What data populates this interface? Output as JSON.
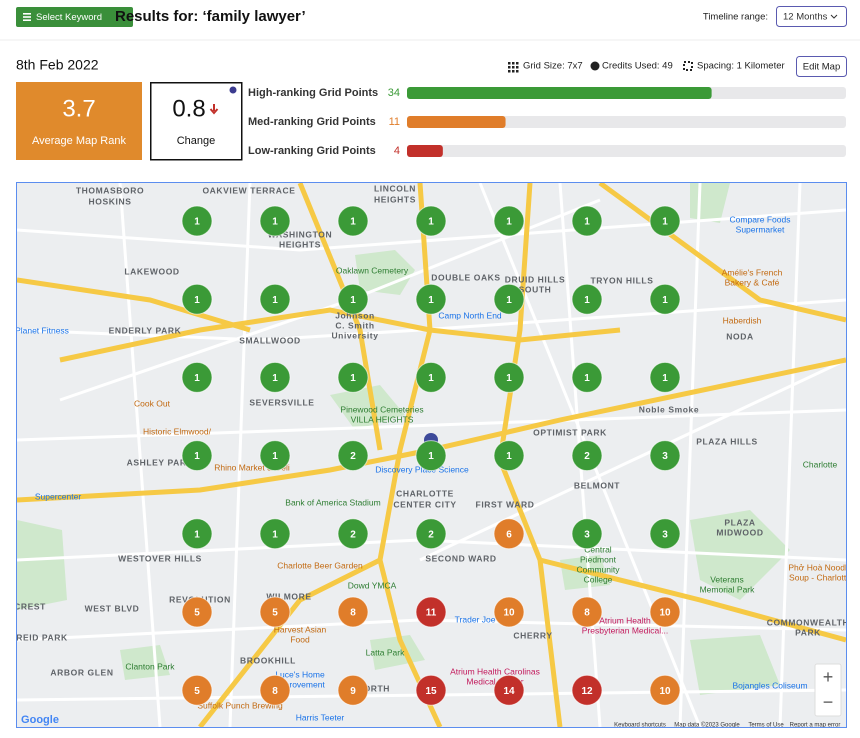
{
  "header": {
    "button": "Select Keyword",
    "title": "Results for: ‘family lawyer’",
    "timeline_label": "Timeline range:",
    "timeline_value": "12 Months"
  },
  "summary": {
    "date": "8th Feb 2022",
    "grid_size": "Grid Size: 7x7",
    "credits": "Credits Used: 49",
    "spacing": "Spacing: 1 Kilometer",
    "edit_button": "Edit Map",
    "average_rank": 3.7,
    "average_label": "Average Map Rank",
    "change": 0.8,
    "change_label": "Change"
  },
  "ranking": {
    "levels": [
      {
        "label": "High-ranking Grid Points",
        "count": 34,
        "color": "#3b9a37"
      },
      {
        "label": "Med-ranking Grid Points",
        "count": 11,
        "color": "#e07d2a"
      },
      {
        "label": "Low-ranking Grid Points",
        "count": 4,
        "color": "#c2302a"
      }
    ]
  },
  "map": {
    "grid": [
      [
        1,
        1,
        1,
        1,
        1,
        1,
        1
      ],
      [
        1,
        1,
        1,
        1,
        1,
        1,
        1
      ],
      [
        1,
        1,
        1,
        1,
        1,
        1,
        1
      ],
      [
        1,
        1,
        2,
        1,
        1,
        2,
        3
      ],
      [
        1,
        1,
        2,
        2,
        6,
        3,
        3
      ],
      [
        5,
        5,
        8,
        11,
        10,
        8,
        10
      ],
      [
        5,
        8,
        9,
        15,
        14,
        12,
        10
      ]
    ],
    "labels": [
      "THOMASBORO",
      "HOSKINS",
      "OAKVIEW TERRACE",
      "LINCOLN",
      "HEIGHTS",
      "WASHINGTON",
      "HEIGHTS",
      "LAKEWOOD",
      "Oaklawn Cemetery",
      "DOUBLE OAKS",
      "DRUID HILLS",
      "SOUTH",
      "TRYON HILLS",
      "Compare Foods",
      "Supermarket",
      "Amélie's French",
      "Bakery & Café",
      "Planet Fitness",
      "ENDERLY PARK",
      "Johnson",
      "C. Smith",
      "University",
      "SMALLWOOD",
      "Camp North End",
      "Haberdish",
      "NODA",
      "Cook Out",
      "SEVERSVILLE",
      "Historic Elmwood/",
      "Pinewood Cemeteries",
      "VILLA HEIGHTS",
      "Noble Smoke",
      "OPTIMIST PARK",
      "PLAZA HILLS",
      "ASHLEY PARK",
      "Rhino Market & Deli",
      "Discovery Place Science",
      "Charlotte",
      "Bank of America Stadium",
      "CHARLOTTE",
      "CENTER CITY",
      "FIRST WARD",
      "BELMONT",
      "Supercenter",
      "PLAZA",
      "MIDWOOD",
      "WESTOVER HILLS",
      "SECOND WARD",
      "Charlotte Beer Garden",
      "Dowd YMCA",
      "Central",
      "Piedmont",
      "Community",
      "College",
      "Veterans",
      "Memorial Park",
      "Phở Hoà Noodle",
      "Soup - Charlotte",
      "CREST",
      "WEST BLVD",
      "REVOLUTION",
      "PARK",
      "WILMORE",
      "Harvest Asian",
      "Food",
      "Trader Joe's",
      "Atrium Health",
      "Presbyterian Medical...",
      "COMMONWEALTH",
      "PARK",
      "REID PARK",
      "CHERRY",
      "ARBOR GLEN",
      "Clanton Park",
      "BROOKHILL",
      "Latta Park",
      "Atrium Health Carolinas",
      "Medical Center",
      "Luce's Home",
      "Improvement",
      "DILWORTH",
      "Bojangles Coliseum",
      "Suffolk Punch Brewing",
      "Harris Teeter",
      "Google",
      "Keyboard shortcuts",
      "Map data ©2023 Google",
      "Terms of Use",
      "Report a map error"
    ],
    "zoom_in": "+",
    "zoom_out": "−"
  }
}
